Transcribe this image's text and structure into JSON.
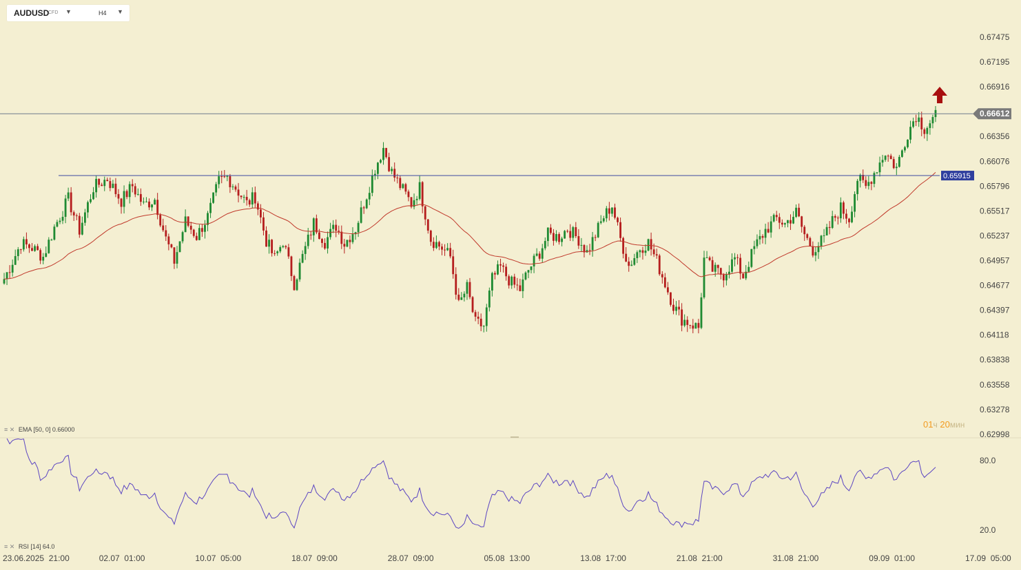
{
  "header": {
    "symbol": "AUDUSD",
    "symbol_type": "CFD",
    "timeframe": "H4"
  },
  "colors": {
    "background": "#f4efd2",
    "bull_candle": "#1f8a32",
    "bear_candle": "#b51e1e",
    "ema_line": "#c0392b",
    "rsi_line": "#5b45c2",
    "current_price_label": "#7a7a7a",
    "level_label": "#2f3f9e",
    "signal_arrow": "#a80f0f",
    "grid": "#d8d1b0"
  },
  "indicators": {
    "ema_label": "EMA",
    "ema_params": "[50, 0]",
    "ema_value": "0.66000",
    "rsi_label": "RSI",
    "rsi_params": "[14]",
    "rsi_value": "64.0"
  },
  "timer": {
    "hours": "01",
    "hours_unit": "ч",
    "minutes": "20",
    "minutes_unit": "мин"
  },
  "chart_data": {
    "type": "candlestick",
    "price_axis_ticks": [
      "0.67475",
      "0.67195",
      "0.66916",
      "0.66636",
      "0.66356",
      "0.66076",
      "0.65796",
      "0.65517",
      "0.65237",
      "0.64957",
      "0.64677",
      "0.64397",
      "0.64118",
      "0.63838",
      "0.63558",
      "0.63278",
      "0.62998"
    ],
    "price_range": [
      0.62998,
      0.67475
    ],
    "current_price": "0.66612",
    "horizontal_level": "0.65915",
    "rsi_ticks": [
      "80.0",
      "20.0"
    ],
    "rsi_range": [
      0,
      100
    ],
    "time_axis_labels": [
      "23.06.2025  21:00",
      "02.07  01:00",
      "10.07  05:00",
      "18.07  09:00",
      "28.07  09:00",
      "05.08  13:00",
      "13.08  17:00",
      "21.08  21:00",
      "31.08  21:00",
      "09.09  01:00",
      "17.09  05:00"
    ],
    "signal": "buy-arrow",
    "close_path": [
      [
        0.6475,
        0
      ],
      [
        0.6515,
        6
      ],
      [
        0.651,
        10
      ],
      [
        0.65,
        14
      ],
      [
        0.6533,
        18
      ],
      [
        0.6565,
        23
      ],
      [
        0.653,
        27
      ],
      [
        0.6578,
        32
      ],
      [
        0.6588,
        37
      ],
      [
        0.6563,
        42
      ],
      [
        0.658,
        46
      ],
      [
        0.6558,
        50
      ],
      [
        0.6565,
        54
      ],
      [
        0.652,
        58
      ],
      [
        0.6495,
        61
      ],
      [
        0.654,
        65
      ],
      [
        0.6523,
        69
      ],
      [
        0.6545,
        73
      ],
      [
        0.6585,
        77
      ],
      [
        0.659,
        80
      ],
      [
        0.6578,
        83
      ],
      [
        0.656,
        87
      ],
      [
        0.6568,
        90
      ],
      [
        0.6518,
        94
      ],
      [
        0.6498,
        97
      ],
      [
        0.6518,
        100
      ],
      [
        0.647,
        104
      ],
      [
        0.65,
        107
      ],
      [
        0.6538,
        111
      ],
      [
        0.6517,
        115
      ],
      [
        0.6535,
        119
      ],
      [
        0.6515,
        122
      ],
      [
        0.6532,
        126
      ],
      [
        0.657,
        130
      ],
      [
        0.66,
        133
      ],
      [
        0.6623,
        136
      ],
      [
        0.6595,
        139
      ],
      [
        0.6575,
        143
      ],
      [
        0.656,
        146
      ],
      [
        0.6578,
        149
      ],
      [
        0.652,
        153
      ],
      [
        0.651,
        157
      ],
      [
        0.65,
        160
      ],
      [
        0.6445,
        163
      ],
      [
        0.6465,
        166
      ],
      [
        0.6425,
        169
      ],
      [
        0.6422,
        172
      ],
      [
        0.6475,
        175
      ],
      [
        0.6488,
        178
      ],
      [
        0.647,
        182
      ],
      [
        0.6463,
        185
      ],
      [
        0.6485,
        188
      ],
      [
        0.6505,
        192
      ],
      [
        0.6525,
        195
      ],
      [
        0.6522,
        199
      ],
      [
        0.6532,
        202
      ],
      [
        0.652,
        206
      ],
      [
        0.6505,
        209
      ],
      [
        0.6525,
        212
      ],
      [
        0.6545,
        215
      ],
      [
        0.6558,
        218
      ],
      [
        0.652,
        221
      ],
      [
        0.649,
        224
      ],
      [
        0.651,
        228
      ],
      [
        0.6516,
        231
      ],
      [
        0.6495,
        234
      ],
      [
        0.647,
        237
      ],
      [
        0.6445,
        240
      ],
      [
        0.643,
        243
      ],
      [
        0.6425,
        246
      ],
      [
        0.642,
        249
      ],
      [
        0.6497,
        251
      ],
      [
        0.6485,
        254
      ],
      [
        0.648,
        258
      ],
      [
        0.6498,
        262
      ],
      [
        0.6478,
        265
      ],
      [
        0.651,
        269
      ],
      [
        0.653,
        273
      ],
      [
        0.6543,
        277
      ],
      [
        0.6537,
        280
      ],
      [
        0.655,
        284
      ],
      [
        0.6525,
        287
      ],
      [
        0.6508,
        290
      ],
      [
        0.652,
        294
      ],
      [
        0.654,
        297
      ],
      [
        0.6555,
        300
      ],
      [
        0.6543,
        303
      ],
      [
        0.6588,
        306
      ],
      [
        0.6578,
        309
      ],
      [
        0.6595,
        312
      ],
      [
        0.6618,
        316
      ],
      [
        0.66,
        320
      ],
      [
        0.664,
        324
      ],
      [
        0.666,
        327
      ],
      [
        0.6645,
        330
      ],
      [
        0.6658,
        334
      ]
    ]
  }
}
